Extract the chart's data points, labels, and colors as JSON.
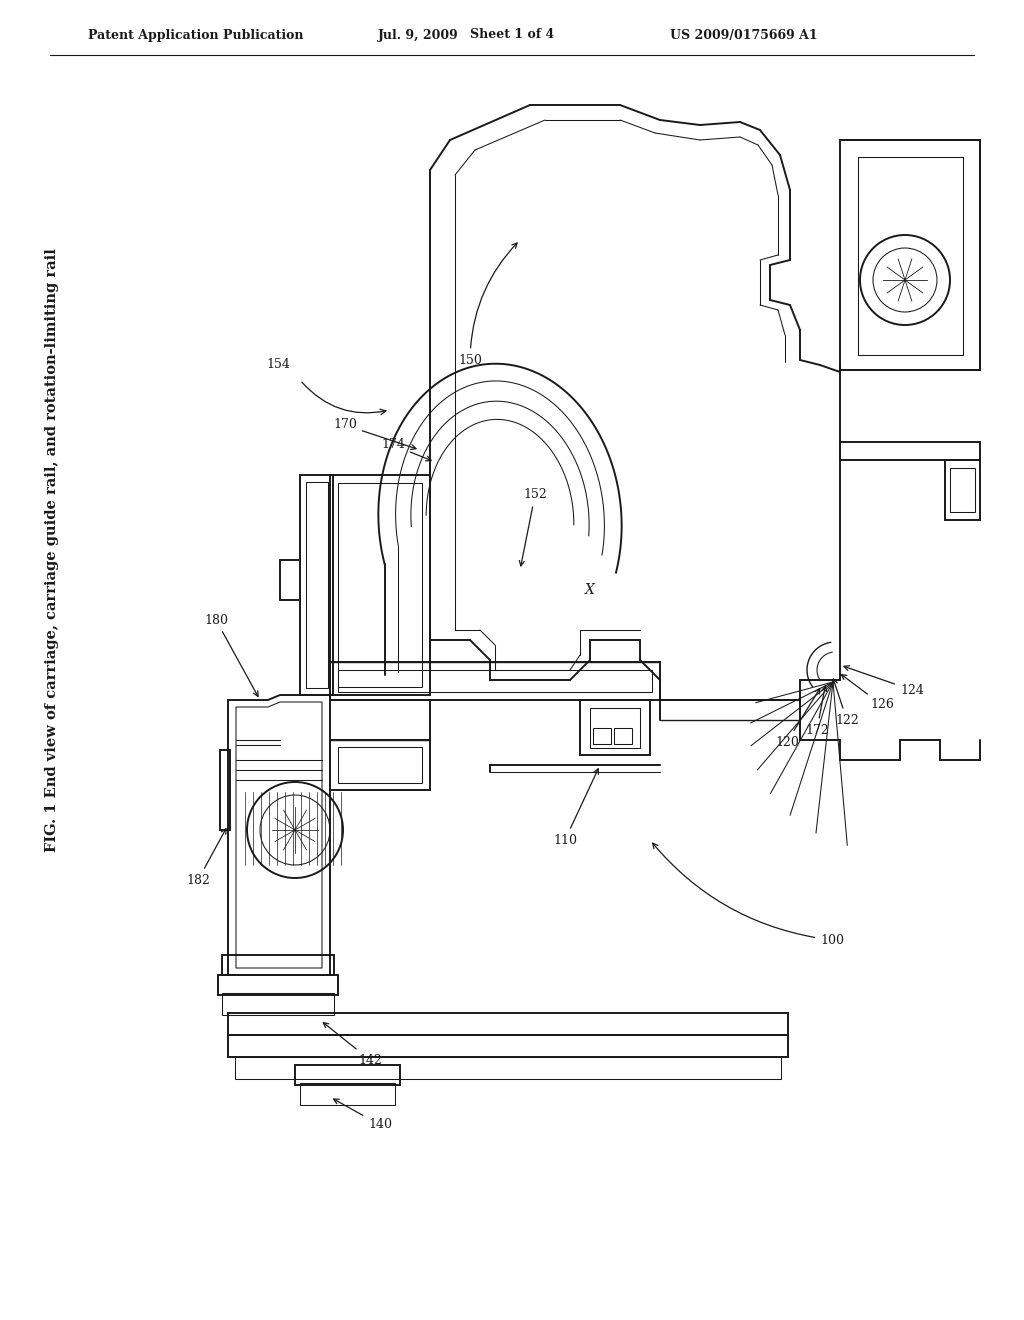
{
  "bg_color": "#ffffff",
  "line_color": "#1a1a1a",
  "header_text": "Patent Application Publication",
  "header_date": "Jul. 9, 2009",
  "header_sheet": "Sheet 1 of 4",
  "header_patent": "US 2009/0175669 A1",
  "fig_label": "FIG. 1 End view of carriage, carriage guide rail, and rotation-limiting rail",
  "lw_main": 1.4,
  "lw_thin": 0.75,
  "lw_med": 1.0,
  "label_fs": 9
}
